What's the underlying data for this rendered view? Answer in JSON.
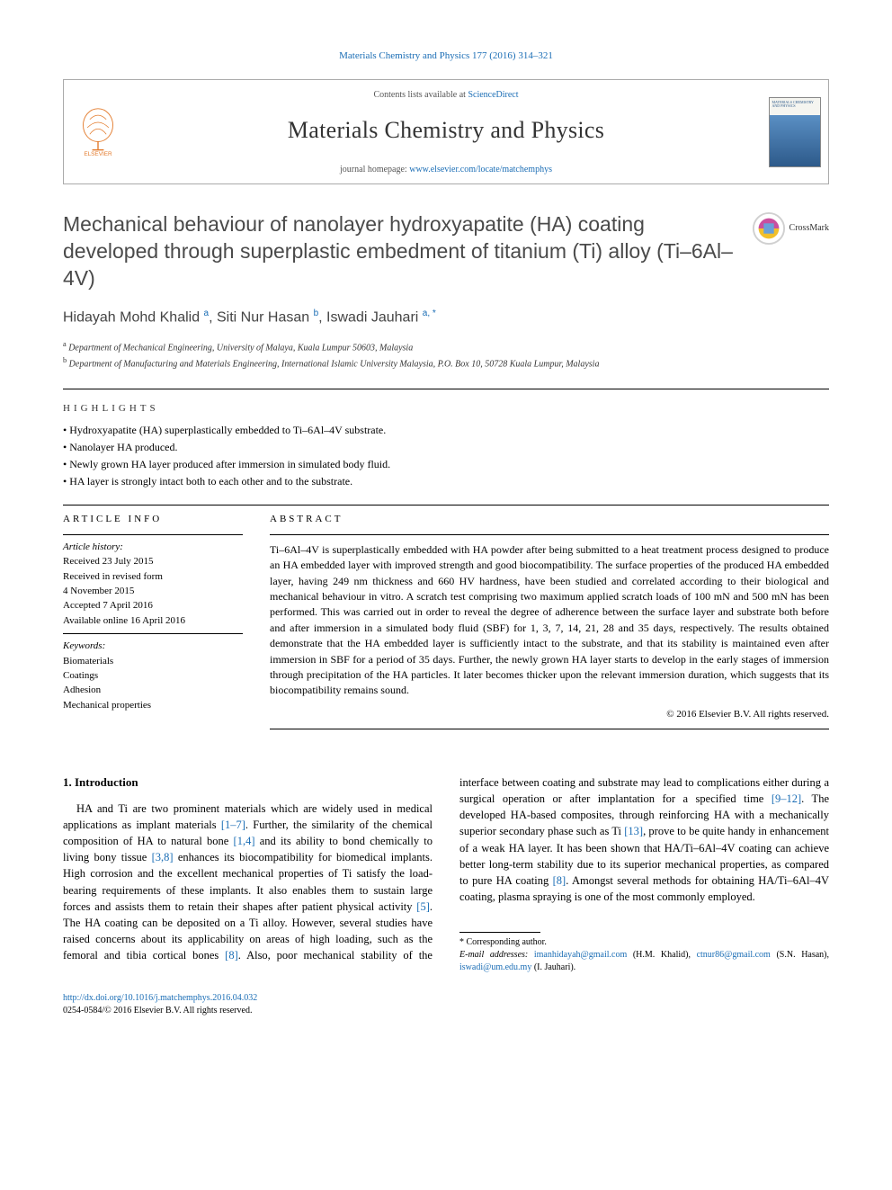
{
  "citation": "Materials Chemistry and Physics 177 (2016) 314–321",
  "header": {
    "contents_prefix": "Contents lists available at ",
    "contents_link": "ScienceDirect",
    "journal": "Materials Chemistry and Physics",
    "homepage_prefix": "journal homepage: ",
    "homepage_link": "www.elsevier.com/locate/matchemphys",
    "elsevier": "ELSEVIER",
    "cover_text": "MATERIALS CHEMISTRY AND PHYSICS"
  },
  "title": "Mechanical behaviour of nanolayer hydroxyapatite (HA) coating developed through superplastic embedment of titanium (Ti) alloy (Ti–6Al–4V)",
  "crossmark": "CrossMark",
  "authors_html": "Hidayah Mohd Khalid <sup>a</sup>, Siti Nur Hasan <sup>b</sup>, Iswadi Jauhari <sup>a, *</sup>",
  "affiliations": {
    "a": "Department of Mechanical Engineering, University of Malaya, Kuala Lumpur 50603, Malaysia",
    "b": "Department of Manufacturing and Materials Engineering, International Islamic University Malaysia, P.O. Box 10, 50728 Kuala Lumpur, Malaysia"
  },
  "highlights_label": "HIGHLIGHTS",
  "highlights": [
    "Hydroxyapatite (HA) superplastically embedded to Ti–6Al–4V substrate.",
    "Nanolayer HA produced.",
    "Newly grown HA layer produced after immersion in simulated body fluid.",
    "HA layer is strongly intact both to each other and to the substrate."
  ],
  "article_info": {
    "label": "ARTICLE INFO",
    "history_label": "Article history:",
    "received": "Received 23 July 2015",
    "revised": "Received in revised form",
    "revised_date": "4 November 2015",
    "accepted": "Accepted 7 April 2016",
    "online": "Available online 16 April 2016",
    "keywords_label": "Keywords:",
    "keywords": [
      "Biomaterials",
      "Coatings",
      "Adhesion",
      "Mechanical properties"
    ]
  },
  "abstract": {
    "label": "ABSTRACT",
    "text": "Ti–6Al–4V is superplastically embedded with HA powder after being submitted to a heat treatment process designed to produce an HA embedded layer with improved strength and good biocompatibility. The surface properties of the produced HA embedded layer, having 249 nm thickness and 660 HV hardness, have been studied and correlated according to their biological and mechanical behaviour in vitro. A scratch test comprising two maximum applied scratch loads of 100 mN and 500 mN has been performed. This was carried out in order to reveal the degree of adherence between the surface layer and substrate both before and after immersion in a simulated body fluid (SBF) for 1, 3, 7, 14, 21, 28 and 35 days, respectively. The results obtained demonstrate that the HA embedded layer is sufficiently intact to the substrate, and that its stability is maintained even after immersion in SBF for a period of 35 days. Further, the newly grown HA layer starts to develop in the early stages of immersion through precipitation of the HA particles. It later becomes thicker upon the relevant immersion duration, which suggests that its biocompatibility remains sound.",
    "copyright": "© 2016 Elsevier B.V. All rights reserved."
  },
  "intro": {
    "heading": "1. Introduction",
    "p1_a": "HA and Ti are two prominent materials which are widely used in medical applications as implant materials ",
    "ref1": "[1–7]",
    "p1_b": ". Further, the similarity of the chemical composition of HA to natural bone ",
    "ref2": "[1,4]",
    "p1_c": " and its ability to bond chemically to living bony tissue ",
    "ref3": "[3,8]",
    "p1_d": " enhances its biocompatibility for biomedical implants. High corrosion and the excellent mechanical properties of Ti satisfy the load-bearing requirements of these implants. It also enables them to sustain large forces and assists them to retain their shapes after patient physical activity ",
    "ref4": "[5]",
    "p1_e": ". The HA coating can be deposited on a Ti alloy. However, several studies have raised concerns about its applicability on areas of high loading, such as the femoral and tibia cortical bones ",
    "ref5": "[8]",
    "p1_f": ". Also, poor mechanical stability of the interface between coating and substrate may lead to complications either during a surgical operation or after implantation for a specified time ",
    "ref6": "[9–12]",
    "p1_g": ". The developed HA-based composites, through reinforcing HA with a mechanically superior secondary phase such as Ti ",
    "ref7": "[13]",
    "p1_h": ", prove to be quite handy in enhancement of a weak HA layer. It has been shown that HA/Ti–6Al–4V coating can achieve better long-term stability due to its superior mechanical properties, as compared to pure HA coating ",
    "ref8": "[8]",
    "p1_i": ". Amongst several methods for obtaining HA/Ti–6Al–4V coating, plasma spraying is one of the most commonly employed."
  },
  "footnotes": {
    "corr": "* Corresponding author.",
    "email_label": "E-mail addresses:",
    "email1": "imanhidayah@gmail.com",
    "email1_who": " (H.M. Khalid), ",
    "email2": "ctnur86@gmail.com",
    "email2_who": " (S.N. Hasan), ",
    "email3": "iswadi@um.edu.my",
    "email3_who": " (I. Jauhari)."
  },
  "doi": {
    "link": "http://dx.doi.org/10.1016/j.matchemphys.2016.04.032",
    "issn": "0254-0584/© 2016 Elsevier B.V. All rights reserved."
  },
  "colors": {
    "link": "#1a6db5",
    "heading_gray": "#4a4a4a"
  }
}
